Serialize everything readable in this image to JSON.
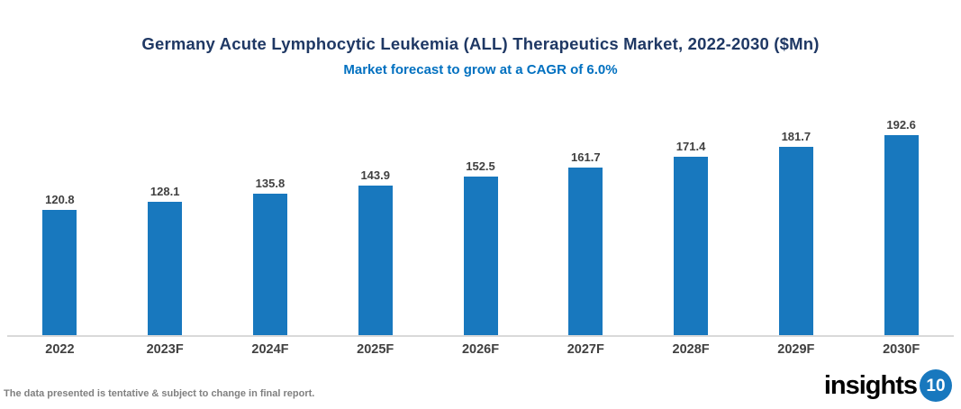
{
  "header": {
    "title": "Germany Acute Lymphocytic Leukemia (ALL) Therapeutics Market, 2022-2030 ($Mn)",
    "subtitle": "Market forecast to grow at a CAGR of 6.0%"
  },
  "chart_data": {
    "type": "bar",
    "categories": [
      "2022",
      "2023F",
      "2024F",
      "2025F",
      "2026F",
      "2027F",
      "2028F",
      "2029F",
      "2030F"
    ],
    "values": [
      120.8,
      128.1,
      135.8,
      143.9,
      152.5,
      161.7,
      171.4,
      181.7,
      192.6
    ],
    "title": "Germany Acute Lymphocytic Leukemia (ALL) Therapeutics Market, 2022-2030 ($Mn)",
    "subtitle": "Market forecast to grow at a CAGR of 6.0%",
    "xlabel": "",
    "ylabel": "",
    "ylim": [
      0,
      200
    ],
    "grid": false,
    "legend": false,
    "data_labels": true,
    "bar_color": "#1878BE"
  },
  "colors": {
    "bar": "#1878BE",
    "title": "#1F3864",
    "subtitle": "#0070C0",
    "value_label": "#404040",
    "axis_label": "#404040",
    "axis_line": "#D9D9D9",
    "footer": "#808080",
    "logo_text": "#000000",
    "logo_badge": "#1878BE"
  },
  "footer": {
    "disclaimer": "The data presented is tentative & subject to change in final report."
  },
  "logo": {
    "text": "insights",
    "badge": "10"
  }
}
